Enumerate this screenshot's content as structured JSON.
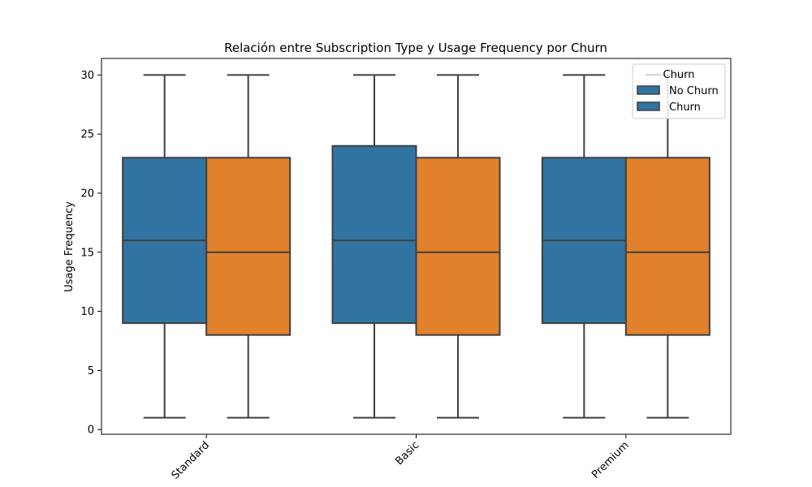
{
  "chart_data": {
    "type": "boxplot",
    "title": "Relación entre Subscription Type y Usage Frequency por Churn",
    "xlabel": "",
    "ylabel": "Usage Frequency",
    "ylim": [
      -0.4,
      31.4
    ],
    "yticks": [
      0,
      5,
      10,
      15,
      20,
      25,
      30
    ],
    "categories": [
      "Standard",
      "Basic",
      "Premium"
    ],
    "legend": {
      "title": "Churn",
      "placement": "top-right",
      "entries": [
        "No Churn",
        "Churn"
      ]
    },
    "series": [
      {
        "key": "no_churn",
        "color": "#3274a1",
        "boxes": [
          {
            "whisker_low": 1,
            "q1": 9,
            "median": 16,
            "q3": 23,
            "whisker_high": 30
          },
          {
            "whisker_low": 1,
            "q1": 9,
            "median": 16,
            "q3": 24,
            "whisker_high": 30
          },
          {
            "whisker_low": 1,
            "q1": 9,
            "median": 16,
            "q3": 23,
            "whisker_high": 30
          }
        ]
      },
      {
        "key": "churn",
        "color": "#e1812c",
        "boxes": [
          {
            "whisker_low": 1,
            "q1": 8,
            "median": 15,
            "q3": 23,
            "whisker_high": 30
          },
          {
            "whisker_low": 1,
            "q1": 8,
            "median": 15,
            "q3": 23,
            "whisker_high": 30
          },
          {
            "whisker_low": 1,
            "q1": 8,
            "median": 15,
            "q3": 23,
            "whisker_high": 30
          }
        ]
      }
    ],
    "legend_swatch_color": "#3274a1"
  }
}
